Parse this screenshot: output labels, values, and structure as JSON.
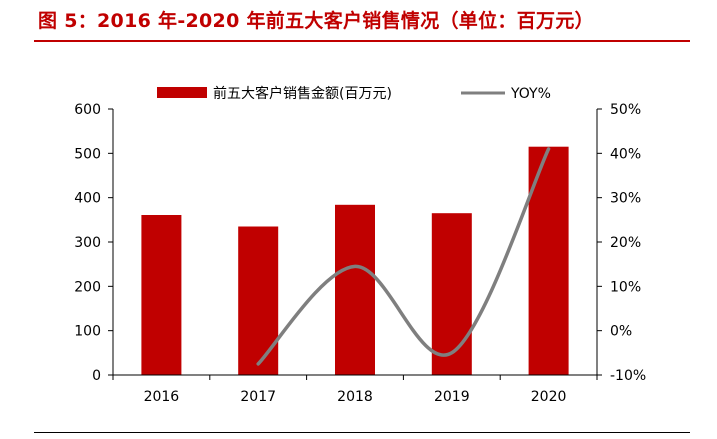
{
  "header": {
    "title": "图 5：2016 年-2020 年前五大客户销售情况（单位：百万元）"
  },
  "colors": {
    "title": "#c00000",
    "bar": "#c00000",
    "line": "#7f7f7f",
    "axis": "#000000"
  },
  "chart_data": {
    "type": "bar",
    "categories": [
      "2016",
      "2017",
      "2018",
      "2019",
      "2020"
    ],
    "series": [
      {
        "name": "前五大客户销售金额(百万元)",
        "type": "bar",
        "axis": "left",
        "values": [
          361,
          335,
          384,
          365,
          515
        ]
      },
      {
        "name": "YOY%",
        "type": "line",
        "axis": "right",
        "smooth": true,
        "values": [
          null,
          -7.5,
          14.5,
          -5.0,
          41.0
        ]
      }
    ],
    "ylim": [
      0,
      600
    ],
    "yticks": [
      0,
      100,
      200,
      300,
      400,
      500,
      600
    ],
    "y2lim": [
      -10,
      50
    ],
    "y2ticks": [
      "-10%",
      "0%",
      "10%",
      "20%",
      "30%",
      "40%",
      "50%"
    ],
    "legend": "top-center",
    "grid": false
  }
}
